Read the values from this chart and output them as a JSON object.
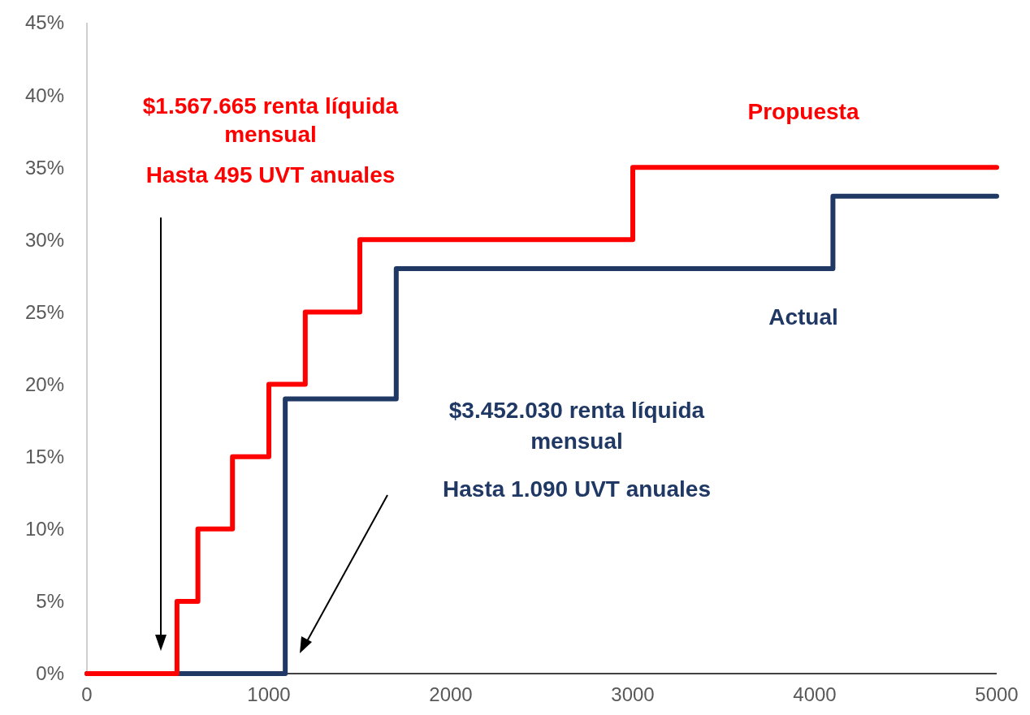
{
  "chart_data": {
    "type": "step",
    "xlim": [
      0,
      5000
    ],
    "xticks": [
      0,
      1000,
      2000,
      3000,
      4000,
      5000
    ],
    "ylim": [
      0,
      45
    ],
    "yticks": [
      {
        "value": 0,
        "label": "0%"
      },
      {
        "value": 5,
        "label": "5%"
      },
      {
        "value": 10,
        "label": "10%"
      },
      {
        "value": 15,
        "label": "15%"
      },
      {
        "value": 20,
        "label": "20%"
      },
      {
        "value": 25,
        "label": "25%"
      },
      {
        "value": 30,
        "label": "30%"
      },
      {
        "value": 35,
        "label": "35%"
      },
      {
        "value": 40,
        "label": "40%"
      },
      {
        "value": 45,
        "label": "45%"
      }
    ],
    "series": [
      {
        "name": "Actual",
        "color": "#203864",
        "x": [
          0,
          1090,
          1700,
          4100,
          5000
        ],
        "values": [
          0,
          19,
          28,
          33,
          33
        ]
      },
      {
        "name": "Propuesta",
        "color": "#ff0000",
        "x": [
          0,
          495,
          610,
          800,
          1000,
          1200,
          1500,
          3000,
          5000
        ],
        "values": [
          0,
          5,
          10,
          15,
          20,
          25,
          30,
          35,
          35
        ]
      }
    ],
    "annotations": [
      "$1.567.665 renta líquida",
      "mensual",
      "Hasta 495 UVT anuales",
      "$3.452.030 renta líquida",
      "mensual",
      "Hasta 1.090 UVT anuales"
    ],
    "grid": false,
    "marker": "none",
    "line_style": "solid"
  }
}
